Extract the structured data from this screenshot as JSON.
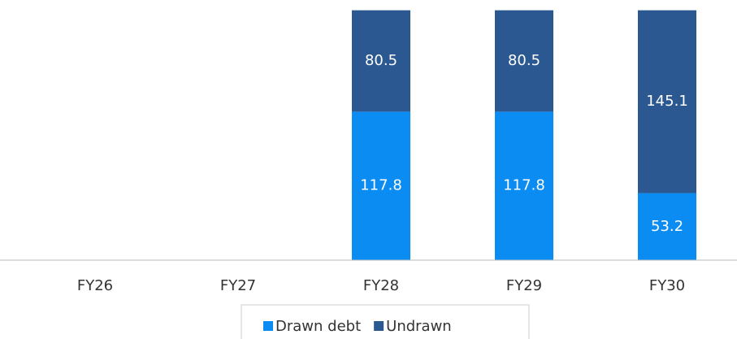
{
  "chart_data": {
    "type": "stacked_bar",
    "categories": [
      "FY26",
      "FY27",
      "FY28",
      "FY29",
      "FY30"
    ],
    "series": [
      {
        "name": "Drawn debt",
        "color": "#0b8cf2",
        "values": [
          null,
          null,
          117.8,
          117.8,
          53.2
        ]
      },
      {
        "name": "Undrawn",
        "color": "#2b5891",
        "values": [
          null,
          null,
          80.5,
          80.5,
          145.1
        ]
      }
    ],
    "ylim": [
      0,
      200
    ]
  }
}
